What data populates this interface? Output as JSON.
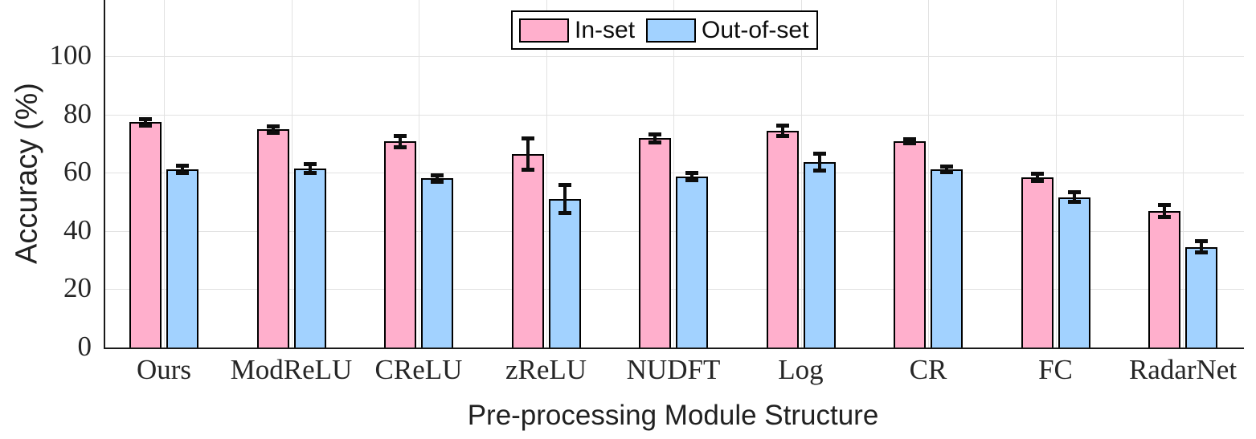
{
  "chart_data": {
    "type": "bar",
    "title": "",
    "xlabel": "Pre-processing Module Structure",
    "ylabel": "Accuracy (%)",
    "categories": [
      "Ours",
      "ModReLU",
      "CReLU",
      "zReLU",
      "NUDFT",
      "Log",
      "CR",
      "FC",
      "RadarNet"
    ],
    "series": [
      {
        "name": "In-set",
        "color": "#ffafcc",
        "values": [
          77.3,
          74.8,
          70.7,
          66.4,
          71.8,
          74.4,
          70.8,
          58.4,
          46.9
        ],
        "errors": [
          1.8,
          1.8,
          2.6,
          6.1,
          2.1,
          2.5,
          1.5,
          2.0,
          2.8
        ]
      },
      {
        "name": "Out-of-set",
        "color": "#a2d2ff",
        "values": [
          61.2,
          61.4,
          58.0,
          51.0,
          58.7,
          63.6,
          61.2,
          51.6,
          34.5
        ],
        "errors": [
          1.9,
          2.2,
          1.9,
          5.6,
          2.0,
          3.5,
          1.6,
          2.4,
          2.6
        ]
      }
    ],
    "yticks": [
      0,
      20,
      40,
      60,
      80,
      100
    ],
    "ylim": [
      0,
      119
    ],
    "grid": true,
    "legend_position": "top-center",
    "bar_edge_color": "#000000",
    "error_bar_color": "#0d0d0d",
    "axis_color": "#1a1a1a",
    "grid_color": "#e2e2e2"
  }
}
